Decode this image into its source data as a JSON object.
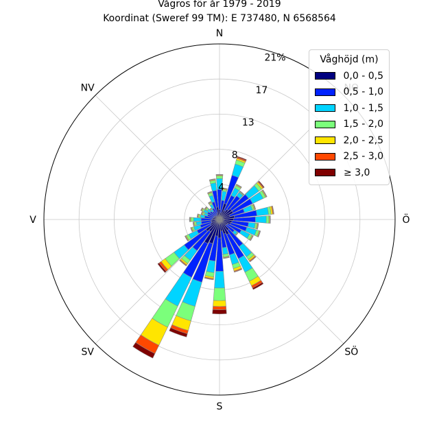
{
  "chart_data": {
    "type": "windrose",
    "title": "Vågros för år 1979 - 2019",
    "subtitle": "Koordinat (Sweref 99 TM): E 737480, N 6568564",
    "directions": [
      "N",
      "NO",
      "Ö",
      "SÖ",
      "S",
      "SV",
      "V",
      "NV"
    ],
    "radial_ticks": [
      "4",
      "8",
      "13",
      "17",
      "21%"
    ],
    "radial_tick_values": [
      4.2,
      8.4,
      12.6,
      16.8,
      21
    ],
    "rmax": 21,
    "unit": "%",
    "legend_title": "Våghöjd (m)",
    "legend_position": "top-right",
    "grid": true,
    "bins": [
      "0,0 - 0,5",
      "0,5 - 1,0",
      "1,0 - 1,5",
      "1,5 - 2,0",
      "2,0 - 2,5",
      "2,5 - 3,0",
      "≥ 3,0"
    ],
    "colors": [
      "#00007f",
      "#0022ff",
      "#00d4ff",
      "#7bff7b",
      "#ffe500",
      "#ff4800",
      "#7f0000"
    ],
    "sectors": [
      {
        "dir": 0,
        "values": [
          1.2,
          2.4,
          1.3,
          0.3,
          0.1,
          0.05,
          0.05
        ]
      },
      {
        "dir": 10,
        "values": [
          0.8,
          1.5,
          1.1,
          0.2,
          0.1,
          0.05,
          0.05
        ]
      },
      {
        "dir": 20,
        "values": [
          2.0,
          3.5,
          1.4,
          0.5,
          0.2,
          0.15,
          0.1
        ]
      },
      {
        "dir": 30,
        "values": [
          1.2,
          2.0,
          1.0,
          0.3,
          0.1,
          0.05,
          0.05
        ]
      },
      {
        "dir": 40,
        "values": [
          1.5,
          2.0,
          0.5,
          0.1,
          0.05,
          0.05,
          0.0
        ]
      },
      {
        "dir": 50,
        "values": [
          1.8,
          2.5,
          1.5,
          0.4,
          0.2,
          0.1,
          0.1
        ]
      },
      {
        "dir": 60,
        "values": [
          1.8,
          2.6,
          1.4,
          0.3,
          0.1,
          0.05,
          0.05
        ]
      },
      {
        "dir": 70,
        "values": [
          1.3,
          1.8,
          1.0,
          0.2,
          0.1,
          0.05,
          0.05
        ]
      },
      {
        "dir": 80,
        "values": [
          1.8,
          2.7,
          1.4,
          0.3,
          0.2,
          0.1,
          0.05
        ]
      },
      {
        "dir": 90,
        "values": [
          1.7,
          2.6,
          1.3,
          0.3,
          0.1,
          0.05,
          0.05
        ]
      },
      {
        "dir": 100,
        "values": [
          1.5,
          2.0,
          0.8,
          0.2,
          0.1,
          0.05,
          0.05
        ]
      },
      {
        "dir": 110,
        "values": [
          1.4,
          2.0,
          1.2,
          0.3,
          0.1,
          0.05,
          0.05
        ]
      },
      {
        "dir": 120,
        "values": [
          1.1,
          1.8,
          1.1,
          0.3,
          0.1,
          0.05,
          0.05
        ]
      },
      {
        "dir": 130,
        "values": [
          1.0,
          1.2,
          0.4,
          0.1,
          0.05,
          0.0,
          0.0
        ]
      },
      {
        "dir": 140,
        "values": [
          1.6,
          2.4,
          1.5,
          0.4,
          0.2,
          0.1,
          0.05
        ]
      },
      {
        "dir": 150,
        "values": [
          2.0,
          3.2,
          1.8,
          1.2,
          0.6,
          0.3,
          0.2
        ]
      },
      {
        "dir": 160,
        "values": [
          1.8,
          2.6,
          1.2,
          0.5,
          0.3,
          0.1,
          0.05
        ]
      },
      {
        "dir": 170,
        "values": [
          1.4,
          2.0,
          0.8,
          0.3,
          0.1,
          0.05,
          0.05
        ]
      },
      {
        "dir": 180,
        "values": [
          2.2,
          4.0,
          2.0,
          1.5,
          0.7,
          0.4,
          0.5
        ]
      },
      {
        "dir": 190,
        "values": [
          2.0,
          3.0,
          1.4,
          0.5,
          0.2,
          0.1,
          0.05
        ]
      },
      {
        "dir": 200,
        "values": [
          3.0,
          4.8,
          3.0,
          1.8,
          1.2,
          0.4,
          0.4
        ]
      },
      {
        "dir": 210,
        "values": [
          3.2,
          4.5,
          3.8,
          2.8,
          2.4,
          1.1,
          0.6
        ]
      },
      {
        "dir": 220,
        "values": [
          1.8,
          2.8,
          1.4,
          0.5,
          0.2,
          0.1,
          0.05
        ]
      },
      {
        "dir": 230,
        "values": [
          2.0,
          3.2,
          1.5,
          1.3,
          0.6,
          0.3,
          0.2
        ]
      },
      {
        "dir": 240,
        "values": [
          1.2,
          1.8,
          1.1,
          0.3,
          0.1,
          0.05,
          0.05
        ]
      },
      {
        "dir": 250,
        "values": [
          1.0,
          1.4,
          0.8,
          0.2,
          0.1,
          0.05,
          0.05
        ]
      },
      {
        "dir": 260,
        "values": [
          1.0,
          1.2,
          0.6,
          0.2,
          0.1,
          0.05,
          0.05
        ]
      },
      {
        "dir": 270,
        "values": [
          0.9,
          1.3,
          0.9,
          0.3,
          0.1,
          0.05,
          0.05
        ]
      },
      {
        "dir": 280,
        "values": [
          0.8,
          1.0,
          0.5,
          0.2,
          0.1,
          0.05,
          0.05
        ]
      },
      {
        "dir": 290,
        "values": [
          0.7,
          0.8,
          0.4,
          0.2,
          0.1,
          0.05,
          0.05
        ]
      },
      {
        "dir": 300,
        "values": [
          0.7,
          0.9,
          0.5,
          0.2,
          0.1,
          0.05,
          0.05
        ]
      },
      {
        "dir": 310,
        "values": [
          0.6,
          0.8,
          0.4,
          0.2,
          0.1,
          0.05,
          0.05
        ]
      },
      {
        "dir": 320,
        "values": [
          0.5,
          0.7,
          0.3,
          0.1,
          0.05,
          0.05,
          0.0
        ]
      },
      {
        "dir": 330,
        "values": [
          0.6,
          0.9,
          0.5,
          0.2,
          0.1,
          0.05,
          0.05
        ]
      },
      {
        "dir": 340,
        "values": [
          0.8,
          1.4,
          0.8,
          0.3,
          0.1,
          0.05,
          0.05
        ]
      },
      {
        "dir": 350,
        "values": [
          1.5,
          2.0,
          0.9,
          0.3,
          0.1,
          0.05,
          0.05
        ]
      }
    ]
  }
}
